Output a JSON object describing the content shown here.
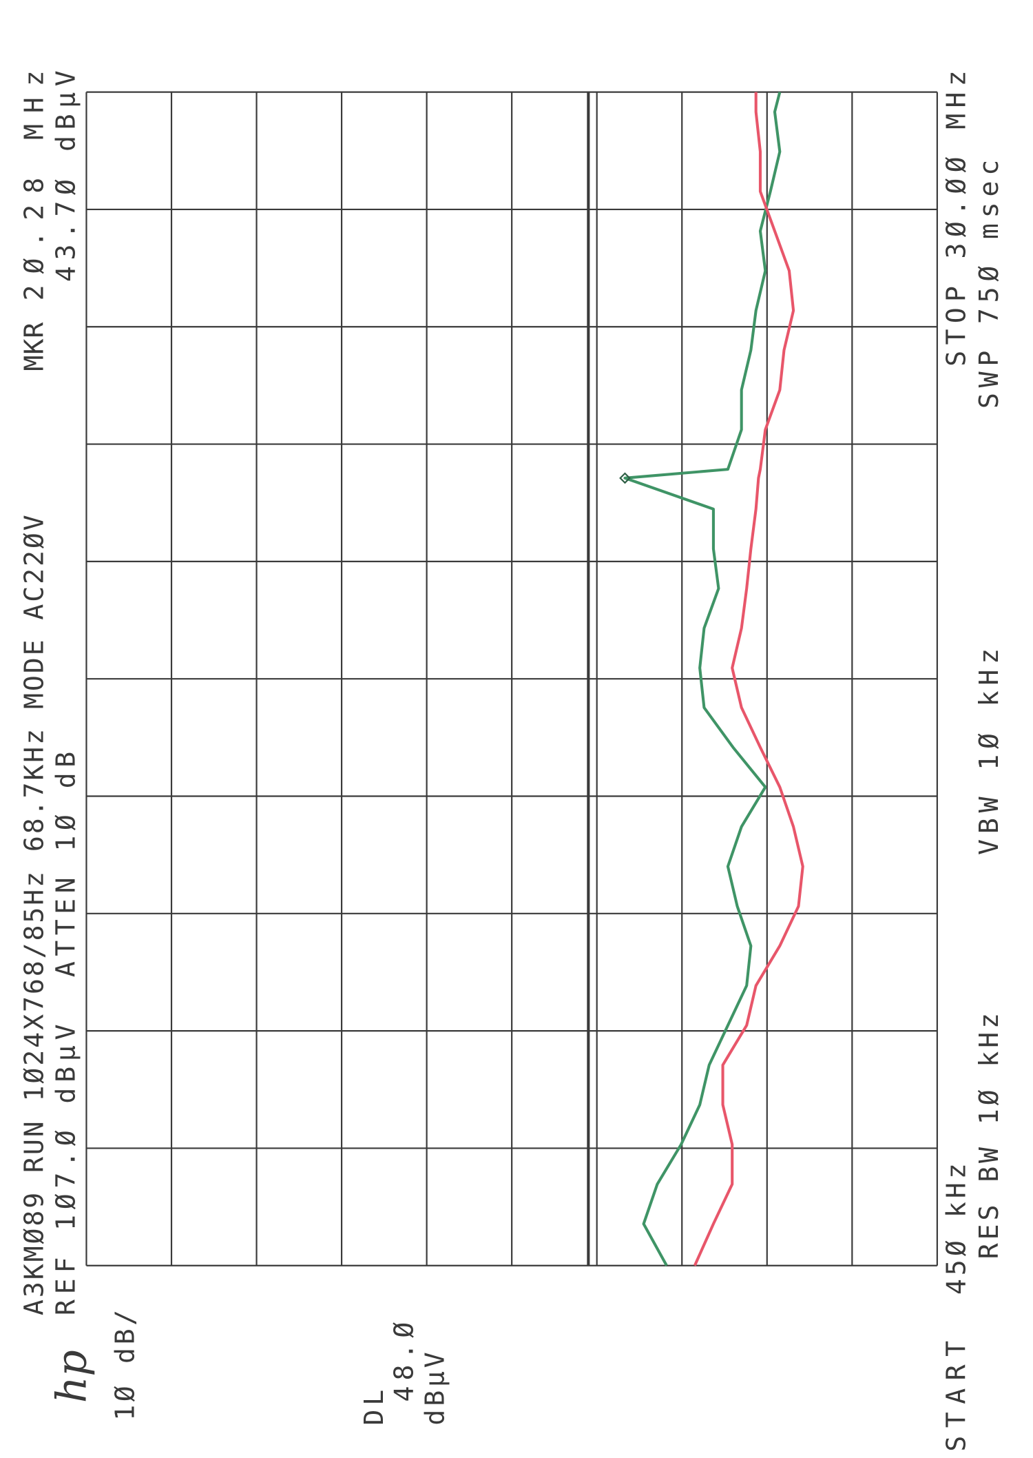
{
  "chart_data": {
    "type": "line",
    "logo": "hp",
    "title": "A3KMØ89 RUN 1Ø24X768/85Hz 68.7KHz MODE AC22ØV",
    "ref_label": "REF 1Ø7.Ø dBµV",
    "atten_label": "ATTEN 1Ø dB",
    "scale_label": "1Ø dB/",
    "marker": {
      "label": "MKR",
      "x": 20.28,
      "x_label": "2Ø.28 MHz",
      "y": 43.7,
      "y_label": "43.7Ø dBµV",
      "color": "#2f5e45"
    },
    "display_line": {
      "name": "DL",
      "value": 48,
      "label": "48.Ø",
      "unit": "dBµV"
    },
    "start_label": "START",
    "start_value_label": "45Ø kHz",
    "stop_label": "STOP 3Ø.ØØ MHz",
    "res_bw_label": "RES BW 1Ø kHz",
    "vbw_label": "VBW 1Ø kHz",
    "sweep_label": "SWP 75Ø msec",
    "xlim": [
      0.45,
      30
    ],
    "xticks": [
      0.45,
      3.405,
      6.36,
      9.315,
      12.27,
      15.225,
      18.18,
      21.135,
      24.09,
      27.045,
      30
    ],
    "ylim": [
      7,
      107
    ],
    "yticks": [
      7,
      17,
      27,
      37,
      47,
      57,
      67,
      77,
      87,
      97,
      107
    ],
    "grid": true,
    "x": [
      0.45,
      1.5,
      2.5,
      3.5,
      4.5,
      5.5,
      6.5,
      7.5,
      8.5,
      9.5,
      10.5,
      11.5,
      12.5,
      13.5,
      14.5,
      15.5,
      16.5,
      17.5,
      18.5,
      19.5,
      20.28,
      20.5,
      21.5,
      22.5,
      23.5,
      24.5,
      25.5,
      26.5,
      27.5,
      28.5,
      29.5,
      30
    ],
    "series": [
      {
        "color": "#3f9466",
        "values": [
          38.8,
          41.5,
          39.9,
          37.1,
          34.9,
          33.8,
          31.6,
          29.4,
          28.9,
          30.5,
          31.6,
          30.0,
          27.2,
          31.0,
          34.4,
          34.9,
          34.4,
          32.7,
          33.3,
          33.3,
          43.7,
          31.6,
          30.0,
          30.0,
          28.9,
          28.3,
          27.2,
          27.8,
          26.6,
          25.5,
          26.1,
          25.5
        ]
      },
      {
        "color": "#e8566a",
        "values": [
          35.5,
          33.3,
          31.1,
          31.1,
          32.2,
          32.2,
          29.4,
          28.3,
          25.5,
          23.3,
          22.8,
          23.9,
          25.5,
          27.8,
          30.0,
          31.1,
          30.0,
          29.4,
          28.9,
          28.3,
          28.0,
          27.8,
          27.2,
          25.5,
          25.0,
          23.9,
          24.4,
          26.1,
          27.8,
          27.8,
          28.3,
          28.3
        ]
      }
    ]
  }
}
